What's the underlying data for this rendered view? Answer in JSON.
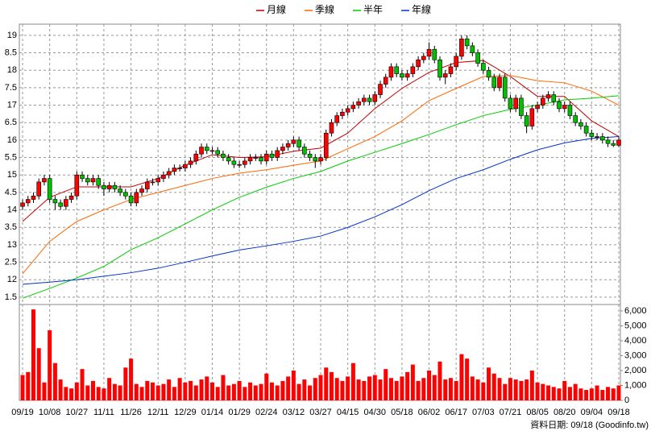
{
  "chart_data": {
    "type": "candlestick",
    "legend_position": "top",
    "grid": true,
    "xlim": [
      -0.6,
      110.3
    ],
    "xticks": [
      {
        "value": 0,
        "label": "09/19"
      },
      {
        "value": 5,
        "label": "10/08"
      },
      {
        "value": 10,
        "label": "10/27"
      },
      {
        "value": 15,
        "label": "11/11"
      },
      {
        "value": 20,
        "label": "11/26"
      },
      {
        "value": 25,
        "label": "12/11"
      },
      {
        "value": 30,
        "label": "12/29"
      },
      {
        "value": 35,
        "label": "01/14"
      },
      {
        "value": 40,
        "label": "01/29"
      },
      {
        "value": 45,
        "label": "02/24"
      },
      {
        "value": 50,
        "label": "03/12"
      },
      {
        "value": 55,
        "label": "03/27"
      },
      {
        "value": 60,
        "label": "04/15"
      },
      {
        "value": 65,
        "label": "04/30"
      },
      {
        "value": 70,
        "label": "05/18"
      },
      {
        "value": 75,
        "label": "06/02"
      },
      {
        "value": 80,
        "label": "06/17"
      },
      {
        "value": 85,
        "label": "07/03"
      },
      {
        "value": 90,
        "label": "07/21"
      },
      {
        "value": 95,
        "label": "08/05"
      },
      {
        "value": 100,
        "label": "08/20"
      },
      {
        "value": 105,
        "label": "09/04"
      },
      {
        "value": 110,
        "label": "09/18"
      }
    ],
    "ylim": [
      11.29,
      19.32
    ],
    "yticks": [
      19,
      {
        "value": 18.5,
        "label": "8.5"
      },
      {
        "value": 18,
        "label": "18"
      },
      {
        "value": 17.5,
        "label": "7.5"
      },
      17,
      {
        "value": 16.5,
        "label": "6.5"
      },
      16,
      {
        "value": 15.5,
        "label": "5.5"
      },
      15,
      {
        "value": 14.5,
        "label": "4.5"
      },
      14,
      {
        "value": 13.5,
        "label": "3.5"
      },
      13,
      {
        "value": 12.5,
        "label": "2.5"
      },
      12,
      {
        "value": 11.5,
        "label": "1.5"
      }
    ],
    "up_color": "#ff0000",
    "down_color": "#00c000",
    "candles": [
      [
        14.1,
        14.3,
        14.0,
        14.2
      ],
      [
        14.2,
        14.4,
        14.1,
        14.3
      ],
      [
        14.3,
        14.5,
        14.2,
        14.4
      ],
      [
        14.4,
        14.9,
        14.3,
        14.8
      ],
      [
        14.8,
        15.0,
        14.7,
        14.9
      ],
      [
        14.9,
        15.0,
        14.2,
        14.3
      ],
      [
        14.3,
        14.4,
        14.0,
        14.2
      ],
      [
        14.2,
        14.3,
        14.0,
        14.1
      ],
      [
        14.1,
        14.4,
        14.0,
        14.3
      ],
      [
        14.3,
        14.5,
        14.2,
        14.4
      ],
      [
        14.4,
        15.1,
        14.3,
        15.0
      ],
      [
        15.0,
        15.1,
        14.8,
        14.9
      ],
      [
        14.9,
        15.0,
        14.7,
        14.8
      ],
      [
        14.8,
        15.0,
        14.7,
        14.9
      ],
      [
        14.9,
        15.0,
        14.6,
        14.7
      ],
      [
        14.7,
        14.8,
        14.4,
        14.6
      ],
      [
        14.6,
        14.8,
        14.5,
        14.7
      ],
      [
        14.7,
        14.8,
        14.5,
        14.6
      ],
      [
        14.6,
        14.7,
        14.4,
        14.5
      ],
      [
        14.5,
        14.6,
        14.3,
        14.4
      ],
      [
        14.4,
        14.5,
        14.1,
        14.2
      ],
      [
        14.2,
        14.6,
        14.1,
        14.5
      ],
      [
        14.5,
        14.7,
        14.4,
        14.6
      ],
      [
        14.6,
        14.9,
        14.5,
        14.8
      ],
      [
        14.8,
        14.9,
        14.7,
        14.8
      ],
      [
        14.8,
        15.0,
        14.7,
        14.9
      ],
      [
        14.9,
        15.1,
        14.8,
        15.0
      ],
      [
        15.0,
        15.2,
        14.9,
        15.1
      ],
      [
        15.1,
        15.3,
        15.0,
        15.2
      ],
      [
        15.2,
        15.3,
        15.1,
        15.2
      ],
      [
        15.2,
        15.4,
        15.1,
        15.3
      ],
      [
        15.3,
        15.5,
        15.2,
        15.4
      ],
      [
        15.4,
        15.7,
        15.3,
        15.6
      ],
      [
        15.6,
        15.9,
        15.5,
        15.8
      ],
      [
        15.8,
        15.9,
        15.6,
        15.7
      ],
      [
        15.7,
        15.8,
        15.6,
        15.7
      ],
      [
        15.7,
        15.8,
        15.5,
        15.6
      ],
      [
        15.6,
        15.7,
        15.4,
        15.5
      ],
      [
        15.5,
        15.6,
        15.3,
        15.4
      ],
      [
        15.4,
        15.5,
        15.2,
        15.3
      ],
      [
        15.3,
        15.4,
        15.2,
        15.3
      ],
      [
        15.3,
        15.5,
        15.2,
        15.4
      ],
      [
        15.4,
        15.6,
        15.3,
        15.5
      ],
      [
        15.5,
        15.6,
        15.4,
        15.5
      ],
      [
        15.5,
        15.6,
        15.3,
        15.4
      ],
      [
        15.4,
        15.7,
        15.3,
        15.6
      ],
      [
        15.6,
        15.7,
        15.4,
        15.5
      ],
      [
        15.5,
        15.8,
        15.4,
        15.7
      ],
      [
        15.7,
        15.9,
        15.6,
        15.8
      ],
      [
        15.8,
        16.0,
        15.7,
        15.9
      ],
      [
        15.9,
        16.1,
        15.8,
        16.0
      ],
      [
        16.0,
        16.1,
        15.7,
        15.8
      ],
      [
        15.8,
        15.9,
        15.5,
        15.6
      ],
      [
        15.6,
        15.7,
        15.4,
        15.5
      ],
      [
        15.5,
        15.6,
        15.2,
        15.4
      ],
      [
        15.4,
        15.6,
        15.3,
        15.5
      ],
      [
        15.5,
        16.3,
        15.4,
        16.2
      ],
      [
        16.2,
        16.6,
        16.1,
        16.5
      ],
      [
        16.5,
        16.8,
        16.4,
        16.7
      ],
      [
        16.7,
        16.9,
        16.6,
        16.8
      ],
      [
        16.8,
        17.0,
        16.7,
        16.9
      ],
      [
        16.9,
        17.1,
        16.8,
        17.0
      ],
      [
        17.0,
        17.2,
        16.9,
        17.1
      ],
      [
        17.1,
        17.3,
        17.0,
        17.2
      ],
      [
        17.2,
        17.3,
        17.0,
        17.1
      ],
      [
        17.1,
        17.4,
        17.0,
        17.3
      ],
      [
        17.3,
        17.7,
        17.2,
        17.6
      ],
      [
        17.6,
        17.9,
        17.5,
        17.8
      ],
      [
        17.8,
        18.2,
        17.7,
        18.1
      ],
      [
        18.1,
        18.2,
        17.8,
        17.9
      ],
      [
        17.9,
        18.0,
        17.7,
        17.8
      ],
      [
        17.8,
        18.0,
        17.7,
        17.9
      ],
      [
        17.9,
        18.2,
        17.8,
        18.1
      ],
      [
        18.1,
        18.4,
        18.0,
        18.3
      ],
      [
        18.3,
        18.5,
        18.2,
        18.4
      ],
      [
        18.4,
        18.8,
        18.3,
        18.6
      ],
      [
        18.6,
        18.7,
        18.2,
        18.3
      ],
      [
        18.3,
        18.4,
        17.7,
        17.8
      ],
      [
        17.8,
        18.0,
        17.6,
        17.9
      ],
      [
        17.9,
        18.2,
        17.8,
        18.1
      ],
      [
        18.1,
        18.5,
        18.0,
        18.4
      ],
      [
        18.4,
        19.0,
        18.3,
        18.9
      ],
      [
        18.9,
        19.0,
        18.6,
        18.7
      ],
      [
        18.7,
        18.8,
        18.4,
        18.5
      ],
      [
        18.5,
        18.6,
        18.1,
        18.2
      ],
      [
        18.2,
        18.3,
        17.9,
        18.0
      ],
      [
        18.0,
        18.1,
        17.7,
        17.8
      ],
      [
        17.8,
        17.9,
        17.4,
        17.5
      ],
      [
        17.5,
        17.9,
        17.4,
        17.8
      ],
      [
        17.8,
        17.9,
        17.1,
        17.2
      ],
      [
        17.2,
        17.3,
        16.8,
        16.9
      ],
      [
        16.9,
        17.3,
        16.8,
        17.2
      ],
      [
        17.2,
        17.3,
        16.6,
        16.7
      ],
      [
        16.7,
        16.8,
        16.2,
        16.4
      ],
      [
        16.4,
        17.0,
        16.3,
        16.9
      ],
      [
        16.9,
        17.1,
        16.8,
        17.0
      ],
      [
        17.0,
        17.3,
        16.9,
        17.2
      ],
      [
        17.2,
        17.4,
        17.1,
        17.3
      ],
      [
        17.3,
        17.4,
        17.0,
        17.1
      ],
      [
        17.1,
        17.2,
        16.8,
        16.9
      ],
      [
        16.9,
        17.1,
        16.8,
        17.0
      ],
      [
        17.0,
        17.1,
        16.6,
        16.7
      ],
      [
        16.7,
        16.8,
        16.4,
        16.5
      ],
      [
        16.5,
        16.6,
        16.3,
        16.4
      ],
      [
        16.4,
        16.5,
        16.1,
        16.2
      ],
      [
        16.2,
        16.3,
        16.0,
        16.1
      ],
      [
        16.1,
        16.2,
        16.0,
        16.1
      ],
      [
        16.1,
        16.2,
        15.9,
        16.0
      ],
      [
        16.0,
        16.1,
        15.8,
        15.9
      ],
      [
        15.9,
        16.0,
        15.8,
        15.85
      ],
      [
        15.85,
        16.1,
        15.8,
        16.0
      ]
    ],
    "lines": {
      "x": [
        0,
        5,
        10,
        15,
        20,
        25,
        30,
        35,
        40,
        45,
        50,
        55,
        60,
        65,
        70,
        75,
        80,
        85,
        90,
        95,
        100,
        105,
        110
      ],
      "series": [
        {
          "name": "月線",
          "color": "#c00000",
          "values": [
            13.67,
            14.36,
            14.66,
            14.66,
            14.66,
            14.9,
            15.28,
            15.58,
            15.5,
            15.52,
            15.68,
            15.77,
            16.2,
            16.9,
            17.48,
            17.94,
            18.22,
            18.28,
            17.82,
            17.25,
            17.25,
            16.55,
            16.1
          ]
        },
        {
          "name": "季線",
          "color": "#ff6600",
          "values": [
            12.17,
            13.1,
            13.67,
            14.0,
            14.3,
            14.5,
            14.7,
            14.9,
            15.05,
            15.15,
            15.28,
            15.4,
            15.75,
            16.1,
            16.55,
            17.13,
            17.48,
            17.82,
            17.85,
            17.7,
            17.64,
            17.4,
            17.0
          ]
        },
        {
          "name": "半年",
          "color": "#00cc00",
          "values": [
            11.47,
            11.75,
            12.05,
            12.38,
            12.86,
            13.2,
            13.6,
            14.0,
            14.36,
            14.65,
            14.9,
            15.1,
            15.4,
            15.65,
            15.9,
            16.16,
            16.44,
            16.7,
            16.88,
            17.0,
            17.15,
            17.2,
            17.27
          ]
        },
        {
          "name": "年線",
          "color": "#0033cc",
          "values": [
            11.87,
            11.93,
            12.0,
            12.1,
            12.2,
            12.33,
            12.5,
            12.68,
            12.85,
            12.97,
            13.1,
            13.25,
            13.5,
            13.8,
            14.15,
            14.55,
            14.9,
            15.15,
            15.45,
            15.72,
            15.92,
            16.05,
            16.1
          ]
        }
      ]
    },
    "volume": {
      "color": "#ff0000",
      "ylim": [
        0,
        6430
      ],
      "yticks": [
        {
          "value": 6000,
          "label": "6,000"
        },
        {
          "value": 5000,
          "label": "5,000"
        },
        {
          "value": 4000,
          "label": "4,000"
        },
        {
          "value": 3000,
          "label": "3,000"
        },
        {
          "value": 2000,
          "label": "2,000"
        },
        {
          "value": 1000,
          "label": "1,000"
        },
        0
      ],
      "values": [
        1700,
        1900,
        6100,
        3500,
        1200,
        4700,
        2500,
        1400,
        900,
        800,
        1200,
        2100,
        1000,
        1300,
        900,
        800,
        1500,
        1100,
        1000,
        2200,
        2800,
        1100,
        900,
        1300,
        1200,
        1000,
        1100,
        1400,
        900,
        1500,
        1200,
        1300,
        1000,
        1400,
        1600,
        1200,
        900,
        1700,
        1000,
        1100,
        1300,
        900,
        1200,
        1000,
        1100,
        1800,
        1200,
        1000,
        1300,
        1600,
        2000,
        1100,
        1400,
        1000,
        1500,
        1700,
        2200,
        1900,
        1500,
        1300,
        1600,
        2500,
        1400,
        1300,
        1600,
        1700,
        1400,
        2100,
        1500,
        1300,
        1600,
        1900,
        2400,
        1300,
        1500,
        2000,
        1700,
        2600,
        1400,
        1500,
        1300,
        3100,
        2800,
        1600,
        1400,
        1200,
        2200,
        1800,
        1500,
        1100,
        1500,
        1400,
        1300,
        1400,
        2000,
        1200,
        1100,
        1000,
        900,
        800,
        1300,
        900,
        1100,
        800,
        700,
        800,
        1000,
        700,
        900,
        800,
        1000
      ]
    },
    "footnote": "資料日期: 09/18 (Goodinfo.tw)"
  }
}
